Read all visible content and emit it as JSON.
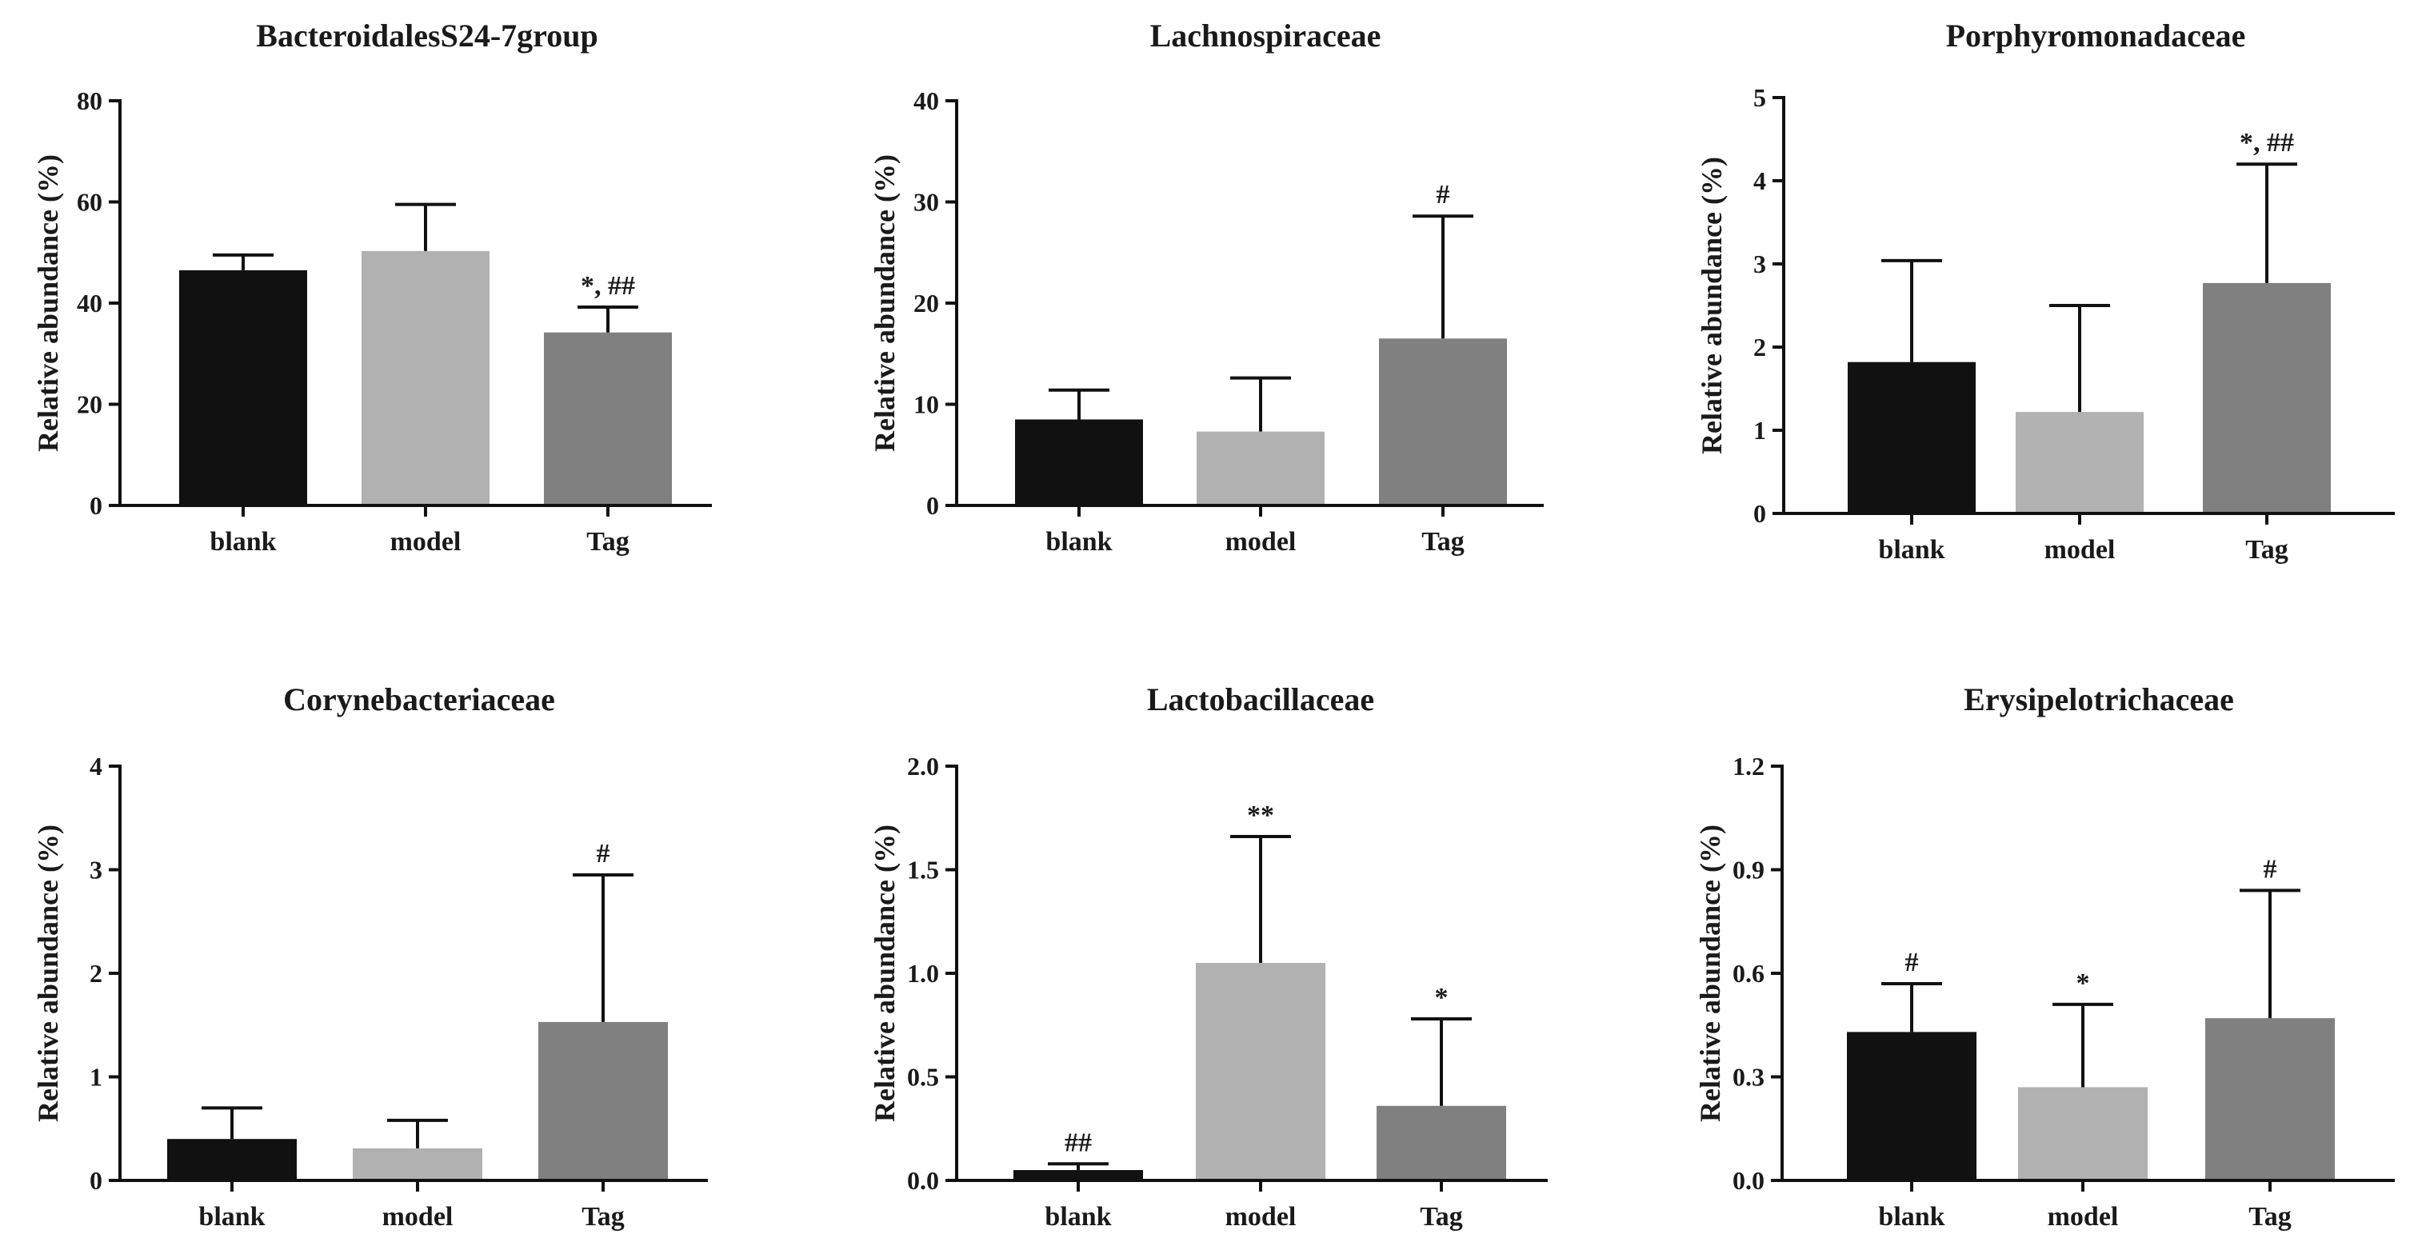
{
  "chart_data": [
    {
      "type": "bar",
      "title": "BacteroidalesS24-7group",
      "ylabel": "Relative abundance (%)",
      "ylim": [
        0,
        80
      ],
      "yticks": [
        "0",
        "20",
        "40",
        "60",
        "80"
      ],
      "categories": [
        "blank",
        "model",
        "Tag"
      ],
      "values": [
        46.5,
        50.3,
        34.2
      ],
      "errors": [
        3.0,
        9.2,
        5.0
      ],
      "annotations": [
        "",
        "",
        "*, ##"
      ],
      "colors": [
        "#111111",
        "#b1b1b1",
        "#808080"
      ]
    },
    {
      "type": "bar",
      "title": "Lachnospiraceae",
      "ylabel": "Relative abundance (%)",
      "ylim": [
        0,
        40
      ],
      "yticks": [
        "0",
        "10",
        "20",
        "30",
        "40"
      ],
      "categories": [
        "blank",
        "model",
        "Tag"
      ],
      "values": [
        8.5,
        7.3,
        16.5
      ],
      "errors": [
        2.9,
        5.3,
        12.1
      ],
      "annotations": [
        "",
        "",
        "#"
      ],
      "colors": [
        "#111111",
        "#b1b1b1",
        "#808080"
      ]
    },
    {
      "type": "bar",
      "title": "Porphyromonadaceae",
      "ylabel": "Relative abundance (%)",
      "ylim": [
        0,
        5
      ],
      "yticks": [
        "0",
        "1",
        "2",
        "3",
        "4",
        "5"
      ],
      "categories": [
        "blank",
        "model",
        "Tag"
      ],
      "values": [
        1.82,
        1.22,
        2.77
      ],
      "errors": [
        1.22,
        1.28,
        1.43
      ],
      "annotations": [
        "",
        "",
        "*, ##"
      ],
      "colors": [
        "#111111",
        "#b1b1b1",
        "#808080"
      ]
    },
    {
      "type": "bar",
      "title": "Corynebacteriaceae",
      "ylabel": "Relative abundance (%)",
      "ylim": [
        0,
        4
      ],
      "yticks": [
        "0",
        "1",
        "2",
        "3",
        "4"
      ],
      "categories": [
        "blank",
        "model",
        "Tag"
      ],
      "values": [
        0.4,
        0.31,
        1.53
      ],
      "errors": [
        0.3,
        0.27,
        1.42
      ],
      "annotations": [
        "",
        "",
        "#"
      ],
      "colors": [
        "#111111",
        "#b1b1b1",
        "#808080"
      ]
    },
    {
      "type": "bar",
      "title": "Lactobacillaceae",
      "ylabel": "Relative abundance (%)",
      "ylim": [
        0,
        2.0
      ],
      "yticks": [
        "0.0",
        "0.5",
        "1.0",
        "1.5",
        "2.0"
      ],
      "categories": [
        "blank",
        "model",
        "Tag"
      ],
      "values": [
        0.05,
        1.05,
        0.36
      ],
      "errors": [
        0.03,
        0.61,
        0.42
      ],
      "annotations": [
        "##",
        "**",
        "*"
      ],
      "colors": [
        "#111111",
        "#b1b1b1",
        "#808080"
      ]
    },
    {
      "type": "bar",
      "title": "Erysipelotrichaceae",
      "ylabel": "Relative abundance (%)",
      "ylim": [
        0,
        1.2
      ],
      "yticks": [
        "0.0",
        "0.3",
        "0.6",
        "0.9",
        "1.2"
      ],
      "categories": [
        "blank",
        "model",
        "Tag"
      ],
      "values": [
        0.43,
        0.27,
        0.47
      ],
      "errors": [
        0.14,
        0.24,
        0.37
      ],
      "annotations": [
        "#",
        "*",
        "#"
      ],
      "colors": [
        "#111111",
        "#b1b1b1",
        "#808080"
      ]
    }
  ]
}
